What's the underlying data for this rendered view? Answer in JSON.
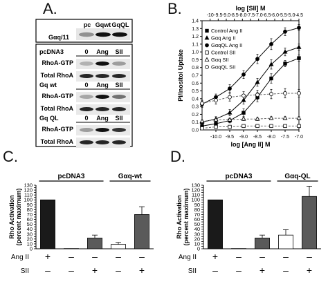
{
  "panel_labels": {
    "a": "A.",
    "b": "B.",
    "c": "C.",
    "d": "D."
  },
  "blot": {
    "top_lane_headers": [
      "pc",
      "Gqwt",
      "GqQL"
    ],
    "top_row_label": "Gαq/11",
    "groups": [
      {
        "name": "pcDNA3",
        "lanes": [
          "0",
          "Ang",
          "SII"
        ],
        "rows": [
          "RhoA-GTP",
          "Total RhoA"
        ]
      },
      {
        "name": "Gq wt",
        "lanes": [
          "0",
          "Ang",
          "SII"
        ],
        "rows": [
          "RhoA-GTP",
          "Total RhoA"
        ]
      },
      {
        "name": "Gq QL",
        "lanes": [
          "0",
          "Ang",
          "SII"
        ],
        "rows": [
          "RhoA-GTP",
          "Total RhoA"
        ]
      }
    ]
  },
  "chart_data": [
    {
      "panel": "B",
      "type": "scatter",
      "xlabel": "log [Ang II] M",
      "x2label": "log [SII] M",
      "ylabel": "PI/Inositol Uptake",
      "xlim": [
        -10.5,
        -7.0
      ],
      "x2lim": [
        -10.5,
        -4.5
      ],
      "ylim": [
        0.0,
        1.4
      ],
      "x_ticks": [
        "-10.0",
        "-9.5",
        "-9.0",
        "-8.5",
        "-8.0",
        "-7.5",
        "-7.0"
      ],
      "x2_ticks": [
        "-10",
        "-9.5",
        "-9.0",
        "-8.5",
        "-8.0",
        "-7.5",
        "-7.0",
        "-6.5",
        "-6.0",
        "-5.5",
        "-5.0",
        "-4.5"
      ],
      "y_ticks": [
        "0.0",
        "0.1",
        "0.2",
        "0.3",
        "0.4",
        "0.5",
        "0.6",
        "0.7",
        "0.8",
        "0.9",
        "1.0",
        "1.1",
        "1.2",
        "1.3",
        "1.4"
      ],
      "legend_position": "left",
      "series": [
        {
          "name": "Control Ang II",
          "axis": "bottom",
          "marker": "square",
          "dashed": false,
          "x": [
            -10.5,
            -10.0,
            -9.5,
            -9.0,
            -8.5,
            -8.0,
            -7.5,
            -7.0
          ],
          "y": [
            0.05,
            0.08,
            0.12,
            0.22,
            0.42,
            0.66,
            0.85,
            0.92
          ],
          "err": [
            0.02,
            0.03,
            0.03,
            0.05,
            0.06,
            0.06,
            0.04,
            0.04
          ]
        },
        {
          "name": "Gαq Ang II",
          "axis": "bottom",
          "marker": "triangle",
          "dashed": false,
          "x": [
            -10.5,
            -10.0,
            -9.5,
            -9.0,
            -8.5,
            -8.0,
            -7.5,
            -7.0
          ],
          "y": [
            0.1,
            0.14,
            0.22,
            0.38,
            0.61,
            0.84,
            1.0,
            1.06
          ],
          "err": [
            0.02,
            0.03,
            0.04,
            0.05,
            0.05,
            0.06,
            0.05,
            0.04
          ]
        },
        {
          "name": "GαqQL Ang II",
          "axis": "bottom",
          "marker": "circle",
          "dashed": false,
          "x": [
            -10.5,
            -10.0,
            -9.5,
            -9.0,
            -8.5,
            -8.0,
            -7.5,
            -7.0
          ],
          "y": [
            0.33,
            0.42,
            0.53,
            0.71,
            0.91,
            1.1,
            1.26,
            1.31
          ],
          "err": [
            0.04,
            0.04,
            0.05,
            0.05,
            0.06,
            0.07,
            0.05,
            0.04
          ]
        },
        {
          "name": "Control SII",
          "axis": "bottom",
          "marker": "square-open",
          "dashed": true,
          "x": [
            -10.5,
            -10.0,
            -9.5,
            -9.0,
            -8.5,
            -8.0,
            -7.5,
            -7.0
          ],
          "y": [
            0.02,
            0.04,
            0.04,
            0.05,
            0.05,
            0.05,
            0.05,
            0.05
          ],
          "err": [
            0.01,
            0.01,
            0.01,
            0.01,
            0.01,
            0.01,
            0.01,
            0.01
          ]
        },
        {
          "name": "Gαq SII",
          "axis": "bottom",
          "marker": "triangle-open",
          "dashed": true,
          "x": [
            -10.5,
            -10.0,
            -9.5,
            -9.0,
            -8.5,
            -8.0,
            -7.5,
            -7.0
          ],
          "y": [
            0.11,
            0.13,
            0.13,
            0.14,
            0.14,
            0.15,
            0.15,
            0.15
          ],
          "err": [
            0.02,
            0.02,
            0.02,
            0.02,
            0.02,
            0.02,
            0.02,
            0.02
          ]
        },
        {
          "name": "GαqQL SII",
          "axis": "bottom",
          "marker": "circle-open",
          "dashed": true,
          "x": [
            -10.5,
            -10.0,
            -9.5,
            -9.0,
            -8.5,
            -8.0,
            -7.5,
            -7.0
          ],
          "y": [
            0.34,
            0.38,
            0.42,
            0.44,
            0.45,
            0.46,
            0.47,
            0.47
          ],
          "err": [
            0.04,
            0.05,
            0.05,
            0.05,
            0.06,
            0.06,
            0.06,
            0.05
          ]
        }
      ]
    },
    {
      "panel": "C",
      "type": "bar",
      "ylabel": "Rho Activation (percent maximum)",
      "ylim": [
        0,
        130
      ],
      "y_ticks": [
        "0",
        "5",
        "10",
        "15",
        "20",
        "25",
        "30",
        "35",
        "40",
        "45",
        "50",
        "55",
        "60",
        "65",
        "70",
        "75",
        "80",
        "85",
        "90",
        "95",
        "100",
        "105",
        "110",
        "115",
        "120",
        "125",
        "130"
      ],
      "group_labels": [
        "pcDNA3",
        "Gαq-wt"
      ],
      "row_labels": [
        "Ang II",
        "SII"
      ],
      "bars": [
        {
          "value": 100,
          "err": 0,
          "color": "#1a1a1a",
          "angii": "+",
          "sii": "-"
        },
        {
          "value": 0.5,
          "err": 0,
          "color": "#1a1a1a",
          "angii": "-",
          "sii": "-"
        },
        {
          "value": 22,
          "err": 6,
          "color": "#5a5a5a",
          "angii": "-",
          "sii": "+"
        },
        {
          "value": 9,
          "err": 4,
          "color": "#ffffff",
          "angii": "-",
          "sii": "-"
        },
        {
          "value": 70,
          "err": 16,
          "color": "#5a5a5a",
          "angii": "-",
          "sii": "+"
        }
      ]
    },
    {
      "panel": "D",
      "type": "bar",
      "ylabel": "Rho Activation (percent maximum)",
      "ylim": [
        0,
        130
      ],
      "y_ticks": [
        "0",
        "5",
        "10",
        "15",
        "20",
        "25",
        "30",
        "35",
        "40",
        "45",
        "50",
        "55",
        "60",
        "65",
        "70",
        "75",
        "80",
        "85",
        "90",
        "95",
        "100",
        "105",
        "110",
        "115",
        "120",
        "125",
        "130"
      ],
      "group_labels": [
        "pcDNA3",
        "Gαq-QL"
      ],
      "row_labels": [
        "Ang II",
        "SII"
      ],
      "bars": [
        {
          "value": 100,
          "err": 0,
          "color": "#1a1a1a",
          "angii": "+",
          "sii": "-"
        },
        {
          "value": 0.5,
          "err": 0,
          "color": "#1a1a1a",
          "angii": "-",
          "sii": "-"
        },
        {
          "value": 22,
          "err": 6,
          "color": "#5a5a5a",
          "angii": "-",
          "sii": "+"
        },
        {
          "value": 28,
          "err": 11,
          "color": "#ffffff",
          "angii": "-",
          "sii": "-"
        },
        {
          "value": 107,
          "err": 21,
          "color": "#5a5a5a",
          "angii": "-",
          "sii": "+"
        }
      ]
    }
  ]
}
